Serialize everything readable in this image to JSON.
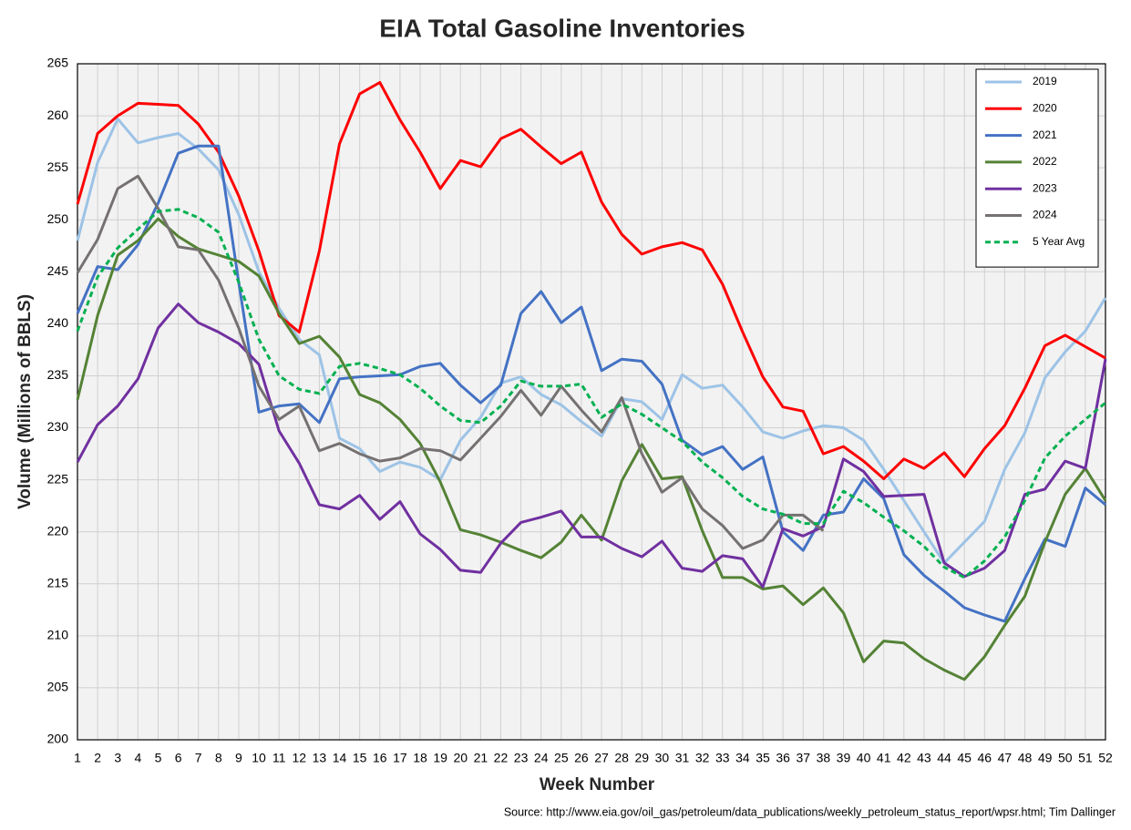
{
  "chart_data": {
    "type": "line",
    "title": "EIA Total Gasoline Inventories",
    "x_label": "Week Number",
    "y_label": "Volume (Millions of BBLS)",
    "source": "Source: http://www.eia.gov/oil_gas/petroleum/data_publications/weekly_petroleum_status_report/wpsr.html; Tim Dallinger",
    "x": [
      1,
      2,
      3,
      4,
      5,
      6,
      7,
      8,
      9,
      10,
      11,
      12,
      13,
      14,
      15,
      16,
      17,
      18,
      19,
      20,
      21,
      22,
      23,
      24,
      25,
      26,
      27,
      28,
      29,
      30,
      31,
      32,
      33,
      34,
      35,
      36,
      37,
      38,
      39,
      40,
      41,
      42,
      43,
      44,
      45,
      46,
      47,
      48,
      49,
      50,
      51,
      52
    ],
    "xlim": [
      1,
      52
    ],
    "xticks": [
      1,
      2,
      3,
      4,
      5,
      6,
      7,
      8,
      9,
      10,
      11,
      12,
      13,
      14,
      15,
      16,
      17,
      18,
      19,
      20,
      21,
      22,
      23,
      24,
      25,
      26,
      27,
      28,
      29,
      30,
      31,
      32,
      33,
      34,
      35,
      36,
      37,
      38,
      39,
      40,
      41,
      42,
      43,
      44,
      45,
      46,
      47,
      48,
      49,
      50,
      51,
      52
    ],
    "ylim": [
      200,
      265
    ],
    "yticks": [
      200,
      205,
      210,
      215,
      220,
      225,
      230,
      235,
      240,
      245,
      250,
      255,
      260,
      265
    ],
    "grid": true,
    "legend": "upper right",
    "series": [
      {
        "name": "2019",
        "color": "#9dc3e6",
        "dashed": false,
        "values": [
          248,
          255.5,
          259.7,
          257.4,
          257.9,
          258.3,
          256.8,
          254.8,
          250.5,
          245,
          241.5,
          238.5,
          237,
          229,
          228,
          225.8,
          226.7,
          226.2,
          225,
          228.8,
          231,
          234.3,
          234.9,
          233.2,
          232.2,
          230.6,
          229.2,
          232.8,
          232.5,
          230.8,
          235.1,
          233.8,
          234.1,
          232,
          229.6,
          229,
          229.7,
          230.2,
          230,
          228.8,
          226,
          223,
          220,
          217,
          219,
          221,
          226,
          229.5,
          234.8,
          237.3,
          239.3,
          242.5
        ]
      },
      {
        "name": "2020",
        "color": "#ff0000",
        "dashed": false,
        "values": [
          251.5,
          258.3,
          260,
          261.2,
          261.1,
          261,
          259.2,
          256.5,
          252.3,
          247,
          240.8,
          239.2,
          247,
          257.3,
          262.1,
          263.2,
          259.6,
          256.5,
          253,
          255.7,
          255.1,
          257.8,
          258.7,
          257,
          255.4,
          256.5,
          251.7,
          248.6,
          246.7,
          247.4,
          247.8,
          247.1,
          243.8,
          239.2,
          234.9,
          232,
          231.6,
          227.5,
          228.2,
          226.8,
          225.1,
          227,
          226.1,
          227.6,
          225.3,
          228,
          230.2,
          233.8,
          237.9,
          238.9,
          237.8,
          236.7
        ]
      },
      {
        "name": "2021",
        "color": "#4472c4",
        "dashed": false,
        "values": [
          241,
          245.5,
          245.2,
          247.6,
          251.6,
          256.4,
          257.1,
          257.1,
          244,
          231.5,
          232.1,
          232.3,
          230.5,
          234.7,
          234.9,
          235,
          235.1,
          235.9,
          236.2,
          234.1,
          232.4,
          234.1,
          241,
          243.1,
          240.1,
          241.6,
          235.5,
          236.6,
          236.4,
          234.2,
          228.8,
          227.4,
          228.2,
          226,
          227.2,
          220,
          218.2,
          221.6,
          221.9,
          225.1,
          223.2,
          217.8,
          215.8,
          214.3,
          212.7,
          212,
          211.4,
          215.5,
          219.3,
          218.6,
          224.2,
          222.6
        ]
      },
      {
        "name": "2022",
        "color": "#548235",
        "dashed": false,
        "values": [
          232.7,
          240.8,
          246.6,
          248,
          250.1,
          248.4,
          247.2,
          246.6,
          246,
          244.6,
          241,
          238.1,
          238.8,
          236.8,
          233.2,
          232.4,
          230.8,
          228.5,
          224.8,
          220.2,
          219.7,
          219,
          218.2,
          217.5,
          219,
          221.6,
          219.2,
          224.9,
          228.4,
          225.1,
          225.3,
          220.1,
          215.6,
          215.6,
          214.5,
          214.8,
          213,
          214.6,
          212.2,
          207.5,
          209.5,
          209.3,
          207.8,
          206.7,
          205.8,
          208,
          211,
          213.8,
          219,
          223.6,
          226.1,
          223
        ]
      },
      {
        "name": "2023",
        "color": "#7030a0",
        "dashed": false,
        "values": [
          226.7,
          230.3,
          232.1,
          234.7,
          239.6,
          241.9,
          240.1,
          239.2,
          238.1,
          236.1,
          229.7,
          226.6,
          222.6,
          222.2,
          223.5,
          221.2,
          222.9,
          219.8,
          218.3,
          216.3,
          216.1,
          218.9,
          220.9,
          221.4,
          222,
          219.5,
          219.5,
          218.4,
          217.6,
          219.1,
          216.5,
          216.2,
          217.7,
          217.4,
          214.7,
          220.3,
          219.6,
          220.5,
          227,
          225.8,
          223.4,
          223.5,
          223.6,
          217,
          215.7,
          216.5,
          218.2,
          223.6,
          224.1,
          226.8,
          226.1,
          236.6
        ]
      },
      {
        "name": "2024",
        "color": "#767171",
        "dashed": false,
        "values": [
          244.9,
          248.1,
          253,
          254.2,
          251.1,
          247.4,
          247.1,
          244.2,
          239.6,
          234,
          230.8,
          232.1,
          227.8,
          228.5,
          227.5,
          226.8,
          227.1,
          228,
          227.8,
          226.9,
          229,
          231.1,
          233.6,
          231.2,
          234,
          231.7,
          229.6,
          232.9,
          227.5,
          223.8,
          225.2,
          222.2,
          220.6,
          218.4,
          219.2,
          221.6,
          221.6,
          220.1,
          null,
          null,
          null,
          null,
          null,
          null,
          null,
          null,
          null,
          null,
          null,
          null,
          null,
          null
        ]
      },
      {
        "name": "5 Year Avg",
        "color": "#00b050",
        "dashed": true,
        "values": [
          239.3,
          244.5,
          247.3,
          249.1,
          250.8,
          251,
          250.2,
          248.8,
          244,
          238.5,
          235,
          233.7,
          233.3,
          235.9,
          236.2,
          235.7,
          235.1,
          233.8,
          232.1,
          230.7,
          230.5,
          232.1,
          234.5,
          234,
          234,
          234.2,
          231,
          232.3,
          231.3,
          230,
          228.7,
          226.7,
          225.2,
          223.4,
          222.2,
          221.7,
          220.8,
          220.8,
          223.9,
          222.8,
          221.4,
          220.1,
          218.6,
          216.6,
          215.6,
          217.2,
          219.5,
          223,
          227.1,
          229.2,
          230.8,
          232.4
        ]
      }
    ]
  }
}
